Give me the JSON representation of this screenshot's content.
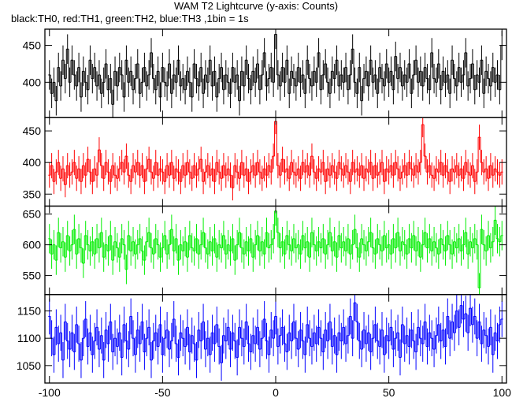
{
  "chart_data": {
    "type": "step",
    "title": "WAM T2 Lightcurve (y-axis: Counts)",
    "subtitle": "black:TH0, red:TH1, green:TH2, blue:TH3 ,1bin = 1s",
    "xlim": [
      -102,
      102
    ],
    "xticks": [
      -100,
      -50,
      0,
      50,
      100
    ],
    "x": [
      -100,
      -99,
      -98,
      -97,
      -96,
      -95,
      -94,
      -93,
      -92,
      -91,
      -90,
      -89,
      -88,
      -87,
      -86,
      -85,
      -84,
      -83,
      -82,
      -81,
      -80,
      -79,
      -78,
      -77,
      -76,
      -75,
      -74,
      -73,
      -72,
      -71,
      -70,
      -69,
      -68,
      -67,
      -66,
      -65,
      -64,
      -63,
      -62,
      -61,
      -60,
      -59,
      -58,
      -57,
      -56,
      -55,
      -54,
      -53,
      -52,
      -51,
      -50,
      -49,
      -48,
      -47,
      -46,
      -45,
      -44,
      -43,
      -42,
      -41,
      -40,
      -39,
      -38,
      -37,
      -36,
      -35,
      -34,
      -33,
      -32,
      -31,
      -30,
      -29,
      -28,
      -27,
      -26,
      -25,
      -24,
      -23,
      -22,
      -21,
      -20,
      -19,
      -18,
      -17,
      -16,
      -15,
      -14,
      -13,
      -12,
      -11,
      -10,
      -9,
      -8,
      -7,
      -6,
      -5,
      -4,
      -3,
      -2,
      -1,
      0,
      1,
      2,
      3,
      4,
      5,
      6,
      7,
      8,
      9,
      10,
      11,
      12,
      13,
      14,
      15,
      16,
      17,
      18,
      19,
      20,
      21,
      22,
      23,
      24,
      25,
      26,
      27,
      28,
      29,
      30,
      31,
      32,
      33,
      34,
      35,
      36,
      37,
      38,
      39,
      40,
      41,
      42,
      43,
      44,
      45,
      46,
      47,
      48,
      49,
      50,
      51,
      52,
      53,
      54,
      55,
      56,
      57,
      58,
      59,
      60,
      61,
      62,
      63,
      64,
      65,
      66,
      67,
      68,
      69,
      70,
      71,
      72,
      73,
      74,
      75,
      76,
      77,
      78,
      79,
      80,
      81,
      82,
      83,
      84,
      85,
      86,
      87,
      88,
      89,
      90,
      91,
      92,
      93,
      94,
      95,
      96,
      97,
      98,
      99,
      100
    ],
    "series": [
      {
        "color": "#000000",
        "error": 20,
        "ylim": [
          352,
          472
        ],
        "yticks": [
          400,
          450
        ],
        "values": [
          410,
          385,
          400,
          375,
          420,
          395,
          430,
          405,
          445,
          400,
          430,
          410,
          395,
          420,
          380,
          415,
          400,
          390,
          430,
          405,
          420,
          395,
          410,
          385,
          400,
          425,
          390,
          405,
          370,
          415,
          395,
          420,
          410,
          380,
          430,
          400,
          415,
          390,
          405,
          425,
          385,
          400,
          420,
          395,
          410,
          440,
          405,
          390,
          415,
          380,
          420,
          400,
          395,
          425,
          385,
          410,
          400,
          430,
          395,
          405,
          390,
          415,
          400,
          380,
          425,
          405,
          395,
          420,
          385,
          410,
          400,
          430,
          395,
          415,
          380,
          405,
          420,
          390,
          410,
          400,
          385,
          420,
          400,
          410,
          375,
          415,
          395,
          430,
          405,
          390,
          415,
          400,
          425,
          390,
          410,
          440,
          395,
          405,
          420,
          400,
          465,
          410,
          395,
          420,
          400,
          430,
          385,
          415,
          405,
          395,
          420,
          400,
          410,
          385,
          430,
          405,
          395,
          415,
          400,
          440,
          390,
          410,
          425,
          400,
          385,
          415,
          405,
          430,
          395,
          410,
          400,
          420,
          390,
          410,
          445,
          400,
          385,
          420,
          375,
          405,
          415,
          395,
          430,
          400,
          410,
          385,
          420,
          405,
          395,
          425,
          400,
          415,
          390,
          435,
          405,
          420,
          395,
          410,
          400,
          425,
          385,
          410,
          430,
          400,
          415,
          395,
          420,
          405,
          390,
          440,
          405,
          400,
          425,
          390,
          415,
          400,
          410,
          385,
          430,
          405,
          395,
          420,
          400,
          410,
          440,
          395,
          405,
          425,
          390,
          410,
          400,
          430,
          385,
          415,
          405,
          395,
          420,
          400,
          410,
          390,
          450
        ]
      },
      {
        "color": "#ff0000",
        "error": 20,
        "ylim": [
          331,
          471
        ],
        "yticks": [
          350,
          400,
          450
        ],
        "values": [
          380,
          395,
          370,
          385,
          400,
          375,
          390,
          365,
          395,
          380,
          385,
          400,
          375,
          390,
          370,
          395,
          380,
          405,
          385,
          370,
          390,
          380,
          420,
          395,
          375,
          400,
          385,
          370,
          395,
          380,
          375,
          390,
          400,
          385,
          410,
          380,
          370,
          395,
          385,
          400,
          380,
          395,
          370,
          390,
          405,
          385,
          375,
          400,
          380,
          390,
          385,
          370,
          395,
          380,
          400,
          375,
          390,
          385,
          370,
          395,
          380,
          400,
          385,
          375,
          395,
          380,
          390,
          405,
          370,
          385,
          395,
          380,
          390,
          370,
          400,
          385,
          375,
          395,
          380,
          390,
          380,
          360,
          395,
          385,
          375,
          400,
          380,
          390,
          370,
          385,
          395,
          380,
          400,
          385,
          375,
          390,
          380,
          395,
          385,
          410,
          465,
          395,
          380,
          405,
          385,
          390,
          375,
          400,
          385,
          380,
          390,
          375,
          400,
          385,
          395,
          380,
          410,
          385,
          375,
          390,
          385,
          400,
          370,
          390,
          380,
          395,
          385,
          375,
          400,
          390,
          380,
          395,
          385,
          370,
          400,
          385,
          390,
          380,
          395,
          375,
          390,
          385,
          400,
          375,
          395,
          380,
          385,
          400,
          370,
          390,
          385,
          395,
          380,
          400,
          390,
          375,
          385,
          395,
          380,
          400,
          390,
          380,
          395,
          385,
          400,
          460,
          410,
          385,
          395,
          380,
          375,
          390,
          385,
          400,
          380,
          395,
          385,
          370,
          390,
          385,
          395,
          380,
          390,
          375,
          400,
          385,
          380,
          395,
          370,
          385,
          440,
          400,
          385,
          390,
          375,
          395,
          380,
          390,
          385,
          380,
          385
        ]
      },
      {
        "color": "#00ee00",
        "error": 24,
        "ylim": [
          519,
          663
        ],
        "yticks": [
          550,
          600,
          650
        ],
        "values": [
          610,
          585,
          600,
          575,
          620,
          595,
          605,
          580,
          615,
          590,
          600,
          625,
          585,
          610,
          595,
          570,
          615,
          600,
          590,
          605,
          585,
          610,
          595,
          620,
          580,
          600,
          590,
          615,
          575,
          605,
          595,
          580,
          610,
          600,
          560,
          615,
          590,
          605,
          585,
          600,
          610,
          590,
          575,
          605,
          620,
          595,
          585,
          610,
          600,
          580,
          595,
          615,
          585,
          600,
          625,
          590,
          610,
          575,
          600,
          590,
          605,
          580,
          615,
          595,
          590,
          610,
          585,
          600,
          620,
          595,
          585,
          605,
          590,
          610,
          580,
          600,
          595,
          615,
          585,
          600,
          590,
          610,
          575,
          600,
          620,
          595,
          585,
          605,
          590,
          610,
          580,
          600,
          615,
          590,
          605,
          585,
          620,
          595,
          600,
          610,
          655,
          620,
          595,
          605,
          585,
          615,
          600,
          590,
          610,
          595,
          600,
          585,
          615,
          595,
          605,
          580,
          620,
          600,
          590,
          605,
          595,
          610,
          585,
          600,
          620,
          590,
          605,
          580,
          615,
          595,
          605,
          590,
          610,
          585,
          600,
          625,
          595,
          580,
          610,
          600,
          590,
          605,
          620,
          595,
          585,
          610,
          600,
          590,
          615,
          595,
          600,
          585,
          610,
          595,
          620,
          590,
          605,
          600,
          585,
          610,
          595,
          615,
          590,
          605,
          580,
          600,
          620,
          595,
          610,
          590,
          605,
          595,
          585,
          610,
          600,
          590,
          615,
          600,
          585,
          605,
          595,
          610,
          590,
          600,
          620,
          585,
          605,
          595,
          610,
          600,
          530,
          625,
          600,
          590,
          615,
          595,
          605,
          640,
          610,
          605,
          615
        ]
      },
      {
        "color": "#0000ff",
        "error": 33,
        "ylim": [
          1018,
          1180
        ],
        "yticks": [
          1050,
          1100,
          1150
        ],
        "values": [
          1140,
          1100,
          1070,
          1120,
          1090,
          1110,
          1060,
          1130,
          1095,
          1080,
          1110,
          1075,
          1125,
          1090,
          1060,
          1100,
          1135,
          1085,
          1110,
          1070,
          1095,
          1120,
          1080,
          1105,
          1060,
          1115,
          1090,
          1130,
          1075,
          1100,
          1085,
          1110,
          1065,
          1125,
          1095,
          1080,
          1140,
          1100,
          1070,
          1115,
          1090,
          1130,
          1075,
          1100,
          1120,
          1060,
          1095,
          1110,
          1085,
          1125,
          1070,
          1100,
          1115,
          1080,
          1095,
          1135,
          1090,
          1065,
          1110,
          1100,
          1085,
          1120,
          1075,
          1105,
          1090,
          1060,
          1115,
          1095,
          1130,
          1080,
          1100,
          1070,
          1110,
          1090,
          1125,
          1085,
          1055,
          1105,
          1095,
          1120,
          1080,
          1110,
          1095,
          1065,
          1120,
          1100,
          1085,
          1130,
          1090,
          1075,
          1105,
          1090,
          1120,
          1080,
          1100,
          1135,
          1095,
          1070,
          1115,
          1100,
          1140,
          1085,
          1105,
          1120,
          1090,
          1075,
          1110,
          1095,
          1130,
          1100,
          1080,
          1115,
          1095,
          1070,
          1125,
          1100,
          1085,
          1110,
          1090,
          1120,
          1100,
          1075,
          1115,
          1095,
          1130,
          1085,
          1105,
          1070,
          1110,
          1095,
          1120,
          1090,
          1105,
          1140,
          1100,
          1165,
          1130,
          1095,
          1080,
          1115,
          1090,
          1110,
          1075,
          1100,
          1125,
          1095,
          1085,
          1115,
          1070,
          1105,
          1095,
          1120,
          1080,
          1100,
          1110,
          1065,
          1125,
          1090,
          1105,
          1085,
          1115,
          1095,
          1075,
          1120,
          1100,
          1090,
          1130,
          1085,
          1110,
          1100,
          1080,
          1105,
          1125,
          1095,
          1115,
          1085,
          1140,
          1100,
          1130,
          1110,
          1150,
          1120,
          1160,
          1135,
          1145,
          1110,
          1155,
          1125,
          1140,
          1100,
          1130,
          1090,
          1115,
          1105,
          1085,
          1120,
          1070,
          1110,
          1095,
          1125,
          1135
        ]
      }
    ]
  }
}
